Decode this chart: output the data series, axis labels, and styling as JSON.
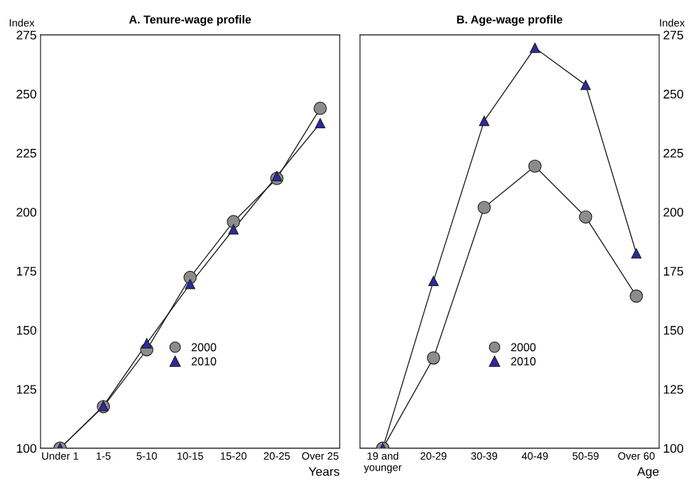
{
  "chart_data": [
    {
      "type": "line",
      "title": "A. Tenure-wage profile",
      "ylabel": "Index",
      "xlabel": "Years",
      "categories": [
        "Under 1",
        "1-5",
        "5-10",
        "10-15",
        "15-20",
        "20-25",
        "Over 25"
      ],
      "ylim": [
        100,
        275
      ],
      "yticks": [
        100,
        125,
        150,
        175,
        200,
        225,
        250,
        275
      ],
      "grid": false,
      "legend": "bottom",
      "series": [
        {
          "name": "2000",
          "color": "#8c8c8c",
          "marker": "circle",
          "values": [
            100,
            117.6,
            141.7,
            172.3,
            195.9,
            214.2,
            243.9
          ]
        },
        {
          "name": "2010",
          "color": "#2b2b9a",
          "marker": "triangle",
          "values": [
            100,
            117.9,
            144.4,
            169.5,
            192.7,
            215.2,
            237.6
          ]
        }
      ]
    },
    {
      "type": "line",
      "title": "B. Age-wage profile",
      "ylabel": "Index",
      "xlabel": "Age",
      "categories": [
        "19 and\nyounger",
        "20-29",
        "30-39",
        "40-49",
        "50-59",
        "Over 60"
      ],
      "ylim": [
        100,
        275
      ],
      "yticks": [
        100,
        125,
        150,
        175,
        200,
        225,
        250,
        275
      ],
      "grid": false,
      "legend": "bottom",
      "series": [
        {
          "name": "2000",
          "color": "#8c8c8c",
          "marker": "circle",
          "values": [
            100,
            138.2,
            201.9,
            219.4,
            197.9,
            164.4
          ]
        },
        {
          "name": "2010",
          "color": "#2b2b9a",
          "marker": "triangle",
          "values": [
            100,
            170.8,
            238.6,
            269.5,
            253.8,
            182.5
          ]
        }
      ]
    }
  ]
}
